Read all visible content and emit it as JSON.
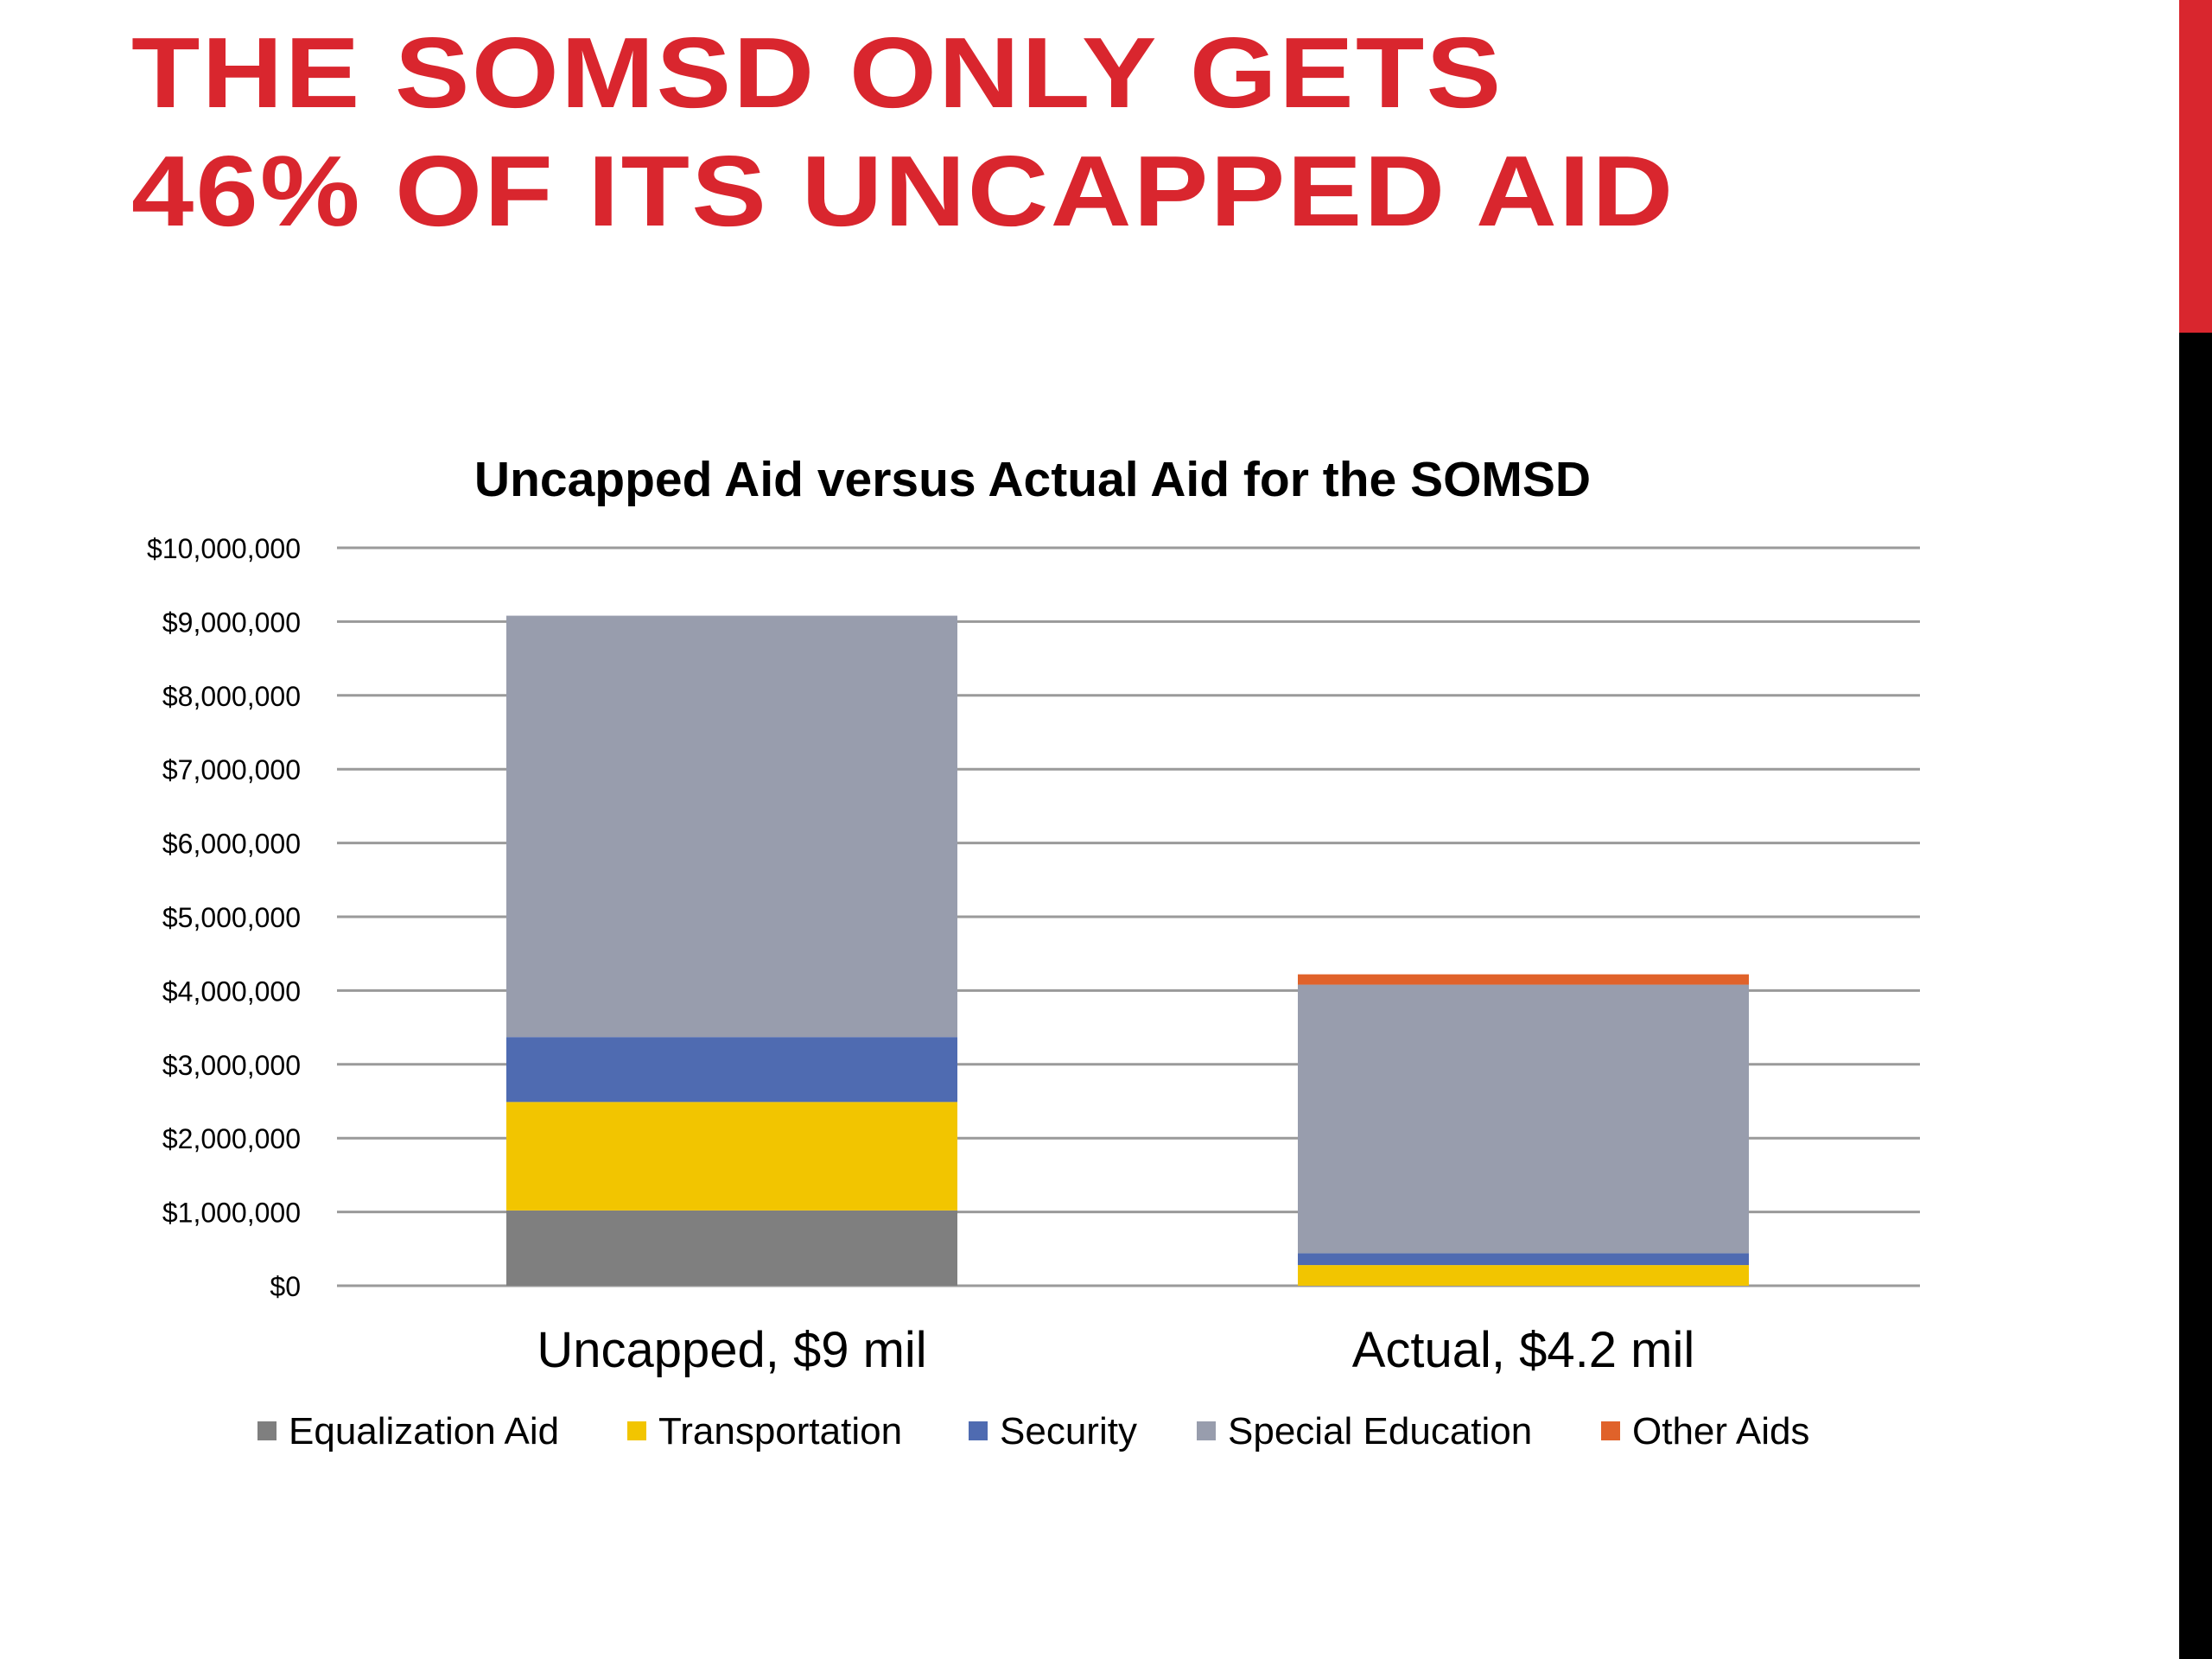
{
  "slide": {
    "title": "THE SOMSD ONLY GETS 46% OF ITS UNCAPPED AID",
    "accent_color": "#d9262e"
  },
  "chart_data": {
    "type": "bar",
    "stacked": true,
    "title": "Uncapped Aid versus Actual Aid for the SOMSD",
    "xlabel": "",
    "ylabel": "",
    "categories": [
      "Uncapped, $9 mil",
      "Actual, $4.2 mil"
    ],
    "ylim": [
      0,
      10000000
    ],
    "yticks": [
      0,
      1000000,
      2000000,
      3000000,
      4000000,
      5000000,
      6000000,
      7000000,
      8000000,
      9000000,
      10000000
    ],
    "ytick_labels": [
      "$0",
      "$1,000,000",
      "$2,000,000",
      "$3,000,000",
      "$4,000,000",
      "$5,000,000",
      "$6,000,000",
      "$7,000,000",
      "$8,000,000",
      "$9,000,000",
      "$10,000,000"
    ],
    "grid": true,
    "legend_position": "bottom",
    "series": [
      {
        "name": "Equalization Aid",
        "color": "#7f7f7f",
        "values": [
          1020000,
          0
        ]
      },
      {
        "name": "Transportation",
        "color": "#f2c500",
        "values": [
          1470000,
          280000
        ]
      },
      {
        "name": "Security",
        "color": "#4f6bb1",
        "values": [
          880000,
          160000
        ]
      },
      {
        "name": "Special Education",
        "color": "#989dad",
        "values": [
          5710000,
          3640000
        ]
      },
      {
        "name": "Other Aids",
        "color": "#e0622a",
        "values": [
          0,
          140000
        ]
      }
    ]
  }
}
